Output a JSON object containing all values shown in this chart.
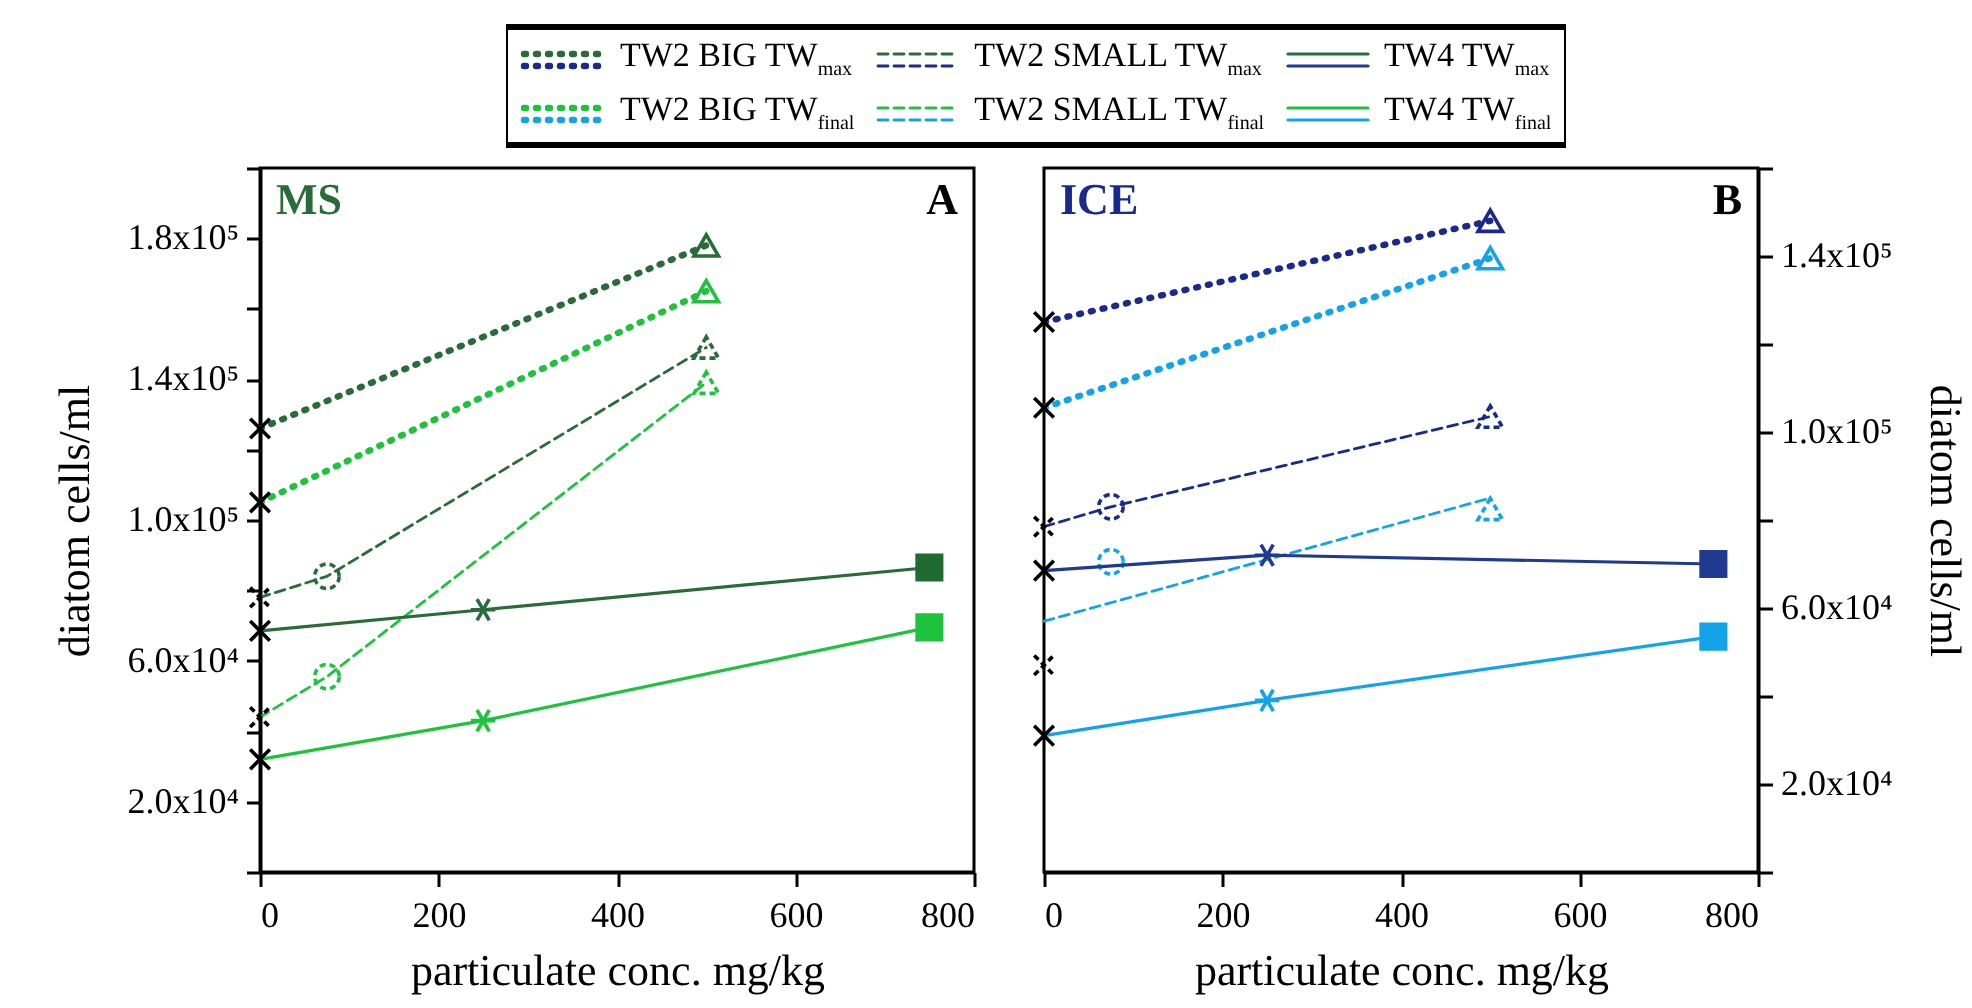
{
  "chart_data": [
    {
      "type": "line",
      "title": "MS",
      "annotations": [
        "A"
      ],
      "xlabel": "particulate conc. mg/kg",
      "ylabel": "diatom cells/ml",
      "legend": "top",
      "xlim": [
        0,
        800
      ],
      "xticks": [
        0,
        200,
        400,
        600,
        800
      ],
      "ylim": [
        0,
        200000
      ],
      "yticks": [
        {
          "value": 0,
          "label": null
        },
        {
          "value": 20000,
          "label": "2.0x10⁴"
        },
        {
          "value": 40000,
          "label": null
        },
        {
          "value": 60000,
          "label": "6.0x10⁴"
        },
        {
          "value": 80000,
          "label": null
        },
        {
          "value": 100000,
          "label": "1.0x10⁵"
        },
        {
          "value": 120000,
          "label": null
        },
        {
          "value": 140000,
          "label": "1.4x10⁵"
        },
        {
          "value": 160000,
          "label": null
        },
        {
          "value": 180000,
          "label": "1.8x10⁵"
        },
        {
          "value": 200000,
          "label": null
        }
      ],
      "series": [
        {
          "name": "TW2 BIG TW$_{max}$",
          "color": "#2a6b3a",
          "line_style": "dotted",
          "x": [
            0,
            500
          ],
          "values": [
            126000,
            178000
          ],
          "marker": [
            "cross",
            "triangle"
          ],
          "colors": [
            "#000000",
            "#2a6b3a"
          ]
        },
        {
          "name": "TW2 BIG TW$_{final}$",
          "color": "#1ec23c",
          "line_style": "dotted",
          "x": [
            0,
            500
          ],
          "values": [
            105000,
            165000
          ],
          "marker": [
            "cross",
            "triangle"
          ],
          "colors": [
            "#000000",
            "#1ec23c"
          ]
        },
        {
          "name": "TW2 SMALL TW$_{max}$",
          "color": "#2a6b3a",
          "line_style": "dashed",
          "x": [
            0,
            75,
            500
          ],
          "values": [
            78000,
            84000,
            149000
          ],
          "marker": [
            "cross",
            "circle",
            "triangle"
          ],
          "colors": [
            "#000000",
            "#2a6b3a",
            "#2a6b3a"
          ]
        },
        {
          "name": "TW2 SMALL TW$_{final}$",
          "color": "#1ec23c",
          "line_style": "dashed",
          "x": [
            0,
            75,
            500
          ],
          "values": [
            44000,
            55500,
            139000
          ],
          "marker": [
            "cross",
            "circle",
            "triangle"
          ],
          "colors": [
            "#000000",
            "#1ec23c",
            "#1ec23c"
          ]
        },
        {
          "name": "TW4 TW$_{max}$",
          "color": "#2a6b3a",
          "line_style": "solid",
          "x": [
            0,
            250,
            750
          ],
          "values": [
            68500,
            74500,
            86500
          ],
          "marker": [
            "cross",
            "star",
            "square"
          ],
          "colors": [
            "#000000",
            "#2a6b3a",
            "#1f6b32"
          ]
        },
        {
          "name": "TW4 TW$_{final}$",
          "color": "#1ec23c",
          "line_style": "solid",
          "x": [
            0,
            250,
            750
          ],
          "values": [
            32000,
            43000,
            69500
          ],
          "marker": [
            "cross",
            "star",
            "square"
          ],
          "colors": [
            "#000000",
            "#1ec23c",
            "#1ec23c"
          ]
        }
      ]
    },
    {
      "type": "line",
      "title": "ICE",
      "annotations": [
        "B"
      ],
      "xlabel": "particulate conc. mg/kg",
      "y2label": "diatom cells/ml",
      "xlim": [
        0,
        800
      ],
      "xticks": [
        0,
        200,
        400,
        600,
        800
      ],
      "y2lim": [
        0,
        160000
      ],
      "y2ticks": [
        {
          "value": 0,
          "label": null
        },
        {
          "value": 20000,
          "label": "2.0x10⁴"
        },
        {
          "value": 40000,
          "label": null
        },
        {
          "value": 60000,
          "label": "6.0x10⁴"
        },
        {
          "value": 80000,
          "label": null
        },
        {
          "value": 100000,
          "label": "1.0x10⁵"
        },
        {
          "value": 120000,
          "label": null
        },
        {
          "value": 140000,
          "label": "1.4x10⁵"
        },
        {
          "value": 160000,
          "label": null
        }
      ],
      "series": [
        {
          "axis": "y2",
          "color": "#1a2a8c",
          "line_style": "dotted",
          "x": [
            0,
            500
          ],
          "values": [
            125000,
            148000
          ],
          "marker": [
            "cross",
            "triangle"
          ],
          "colors": [
            "#000000",
            "#1a2a8c"
          ]
        },
        {
          "axis": "y2",
          "color": "#12a3e8",
          "line_style": "dotted",
          "x": [
            0,
            500
          ],
          "values": [
            105500,
            139500
          ],
          "marker": [
            "cross",
            "triangle"
          ],
          "colors": [
            "#000000",
            "#12a3e8"
          ]
        },
        {
          "axis": "y2",
          "color": "#1a2a8c",
          "line_style": "dashed",
          "x": [
            0,
            75,
            500
          ],
          "values": [
            78500,
            83000,
            103500
          ],
          "marker": [
            "cross",
            "circle",
            "triangle"
          ],
          "colors": [
            "#000000",
            "#1a2a8c",
            "#1a2a8c"
          ]
        },
        {
          "axis": "y2",
          "color": "#12a3e8",
          "line_style": "dashed",
          "x": [
            0,
            500
          ],
          "values": [
            57000,
            85000
          ],
          "marker": [
            "none",
            "none"
          ]
        },
        {
          "type": "scatter",
          "axis": "y2",
          "line_style": "dashed",
          "x": [
            0,
            75,
            500
          ],
          "values": [
            47000,
            70500,
            82500
          ],
          "marker": [
            "cross",
            "circle",
            "triangle"
          ],
          "colors": [
            "#000000",
            "#12a3e8",
            "#12a3e8"
          ]
        },
        {
          "axis": "y2",
          "color": "#1f3a8f",
          "line_style": "solid",
          "x": [
            0,
            250,
            750
          ],
          "values": [
            68500,
            72000,
            70000
          ],
          "marker": [
            "cross",
            "star",
            "square"
          ],
          "colors": [
            "#000000",
            "#1f3a8f",
            "#1f3a8f"
          ]
        },
        {
          "axis": "y2",
          "color": "#12a3e8",
          "line_style": "solid",
          "x": [
            0,
            250,
            750
          ],
          "values": [
            31000,
            39000,
            53500
          ],
          "marker": [
            "cross",
            "star",
            "square"
          ],
          "colors": [
            "#000000",
            "#12a3e8",
            "#12a3e8"
          ]
        }
      ]
    }
  ]
}
